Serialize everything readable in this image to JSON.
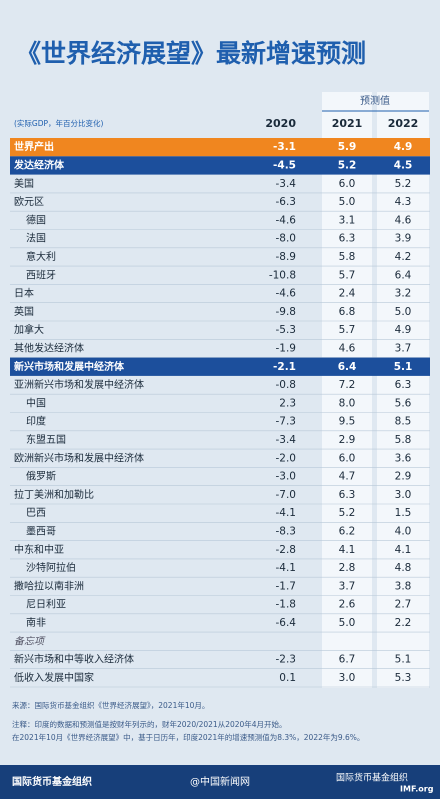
{
  "header": {
    "title": "《世界经济展望》最新增速预测",
    "forecast_label": "预测值"
  },
  "table": {
    "columns": [
      "(实际GDP，年百分比变化)",
      "2020",
      "2021",
      "2022"
    ],
    "rows": [
      [
        "世界产出",
        "-3.1",
        "5.9",
        "4.9"
      ],
      [
        "发达经济体",
        "-4.5",
        "5.2",
        "4.5"
      ],
      [
        "美国",
        "-3.4",
        "6.0",
        "5.2"
      ],
      [
        "欧元区",
        "-6.3",
        "5.0",
        "4.3"
      ],
      [
        "德国",
        "-4.6",
        "3.1",
        "4.6"
      ],
      [
        "法国",
        "-8.0",
        "6.3",
        "3.9"
      ],
      [
        "意大利",
        "-8.9",
        "5.8",
        "4.2"
      ],
      [
        "西班牙",
        "-10.8",
        "5.7",
        "6.4"
      ],
      [
        "日本",
        "-4.6",
        "2.4",
        "3.2"
      ],
      [
        "英国",
        "-9.8",
        "6.8",
        "5.0"
      ],
      [
        "加拿大",
        "-5.3",
        "5.7",
        "4.9"
      ],
      [
        "其他发达经济体",
        "-1.9",
        "4.6",
        "3.7"
      ],
      [
        "新兴市场和发展中经济体",
        "-2.1",
        "6.4",
        "5.1"
      ],
      [
        "亚洲新兴市场和发展中经济体",
        "-0.8",
        "7.2",
        "6.3"
      ],
      [
        "中国",
        "2.3",
        "8.0",
        "5.6"
      ],
      [
        "印度",
        "-7.3",
        "9.5",
        "8.5"
      ],
      [
        "东盟五国",
        "-3.4",
        "2.9",
        "5.8"
      ],
      [
        "欧洲新兴市场和发展中经济体",
        "-2.0",
        "6.0",
        "3.6"
      ],
      [
        "俄罗斯",
        "-3.0",
        "4.7",
        "2.9"
      ],
      [
        "拉丁美洲和加勒比",
        "-7.0",
        "6.3",
        "3.0"
      ],
      [
        "巴西",
        "-4.1",
        "5.2",
        "1.5"
      ],
      [
        "墨西哥",
        "-8.3",
        "6.2",
        "4.0"
      ],
      [
        "中东和中亚",
        "-2.8",
        "4.1",
        "4.1"
      ],
      [
        "沙特阿拉伯",
        "-4.1",
        "2.8",
        "4.8"
      ],
      [
        "撒哈拉以南非洲",
        "-1.7",
        "3.7",
        "3.8"
      ],
      [
        "尼日利亚",
        "-1.8",
        "2.6",
        "2.7"
      ],
      [
        "南非",
        "-6.4",
        "5.0",
        "2.2"
      ],
      [
        "备忘项"
      ],
      [
        "新兴市场和中等收入经济体",
        "-2.3",
        "6.7",
        "5.1"
      ],
      [
        "低收入发展中国家",
        "0.1",
        "3.0",
        "5.3"
      ]
    ]
  },
  "notes": [
    "来源：国际货币基金组织《世界经济展望》，2021年10月。",
    "注释：印度的数据和预测值是按财年列示的，财年2020/2021从2020年4月开始。",
    "在2021年10月《世界经济展望》中，基于日历年，印度2021年的增速预测值为8.3%，2022年为9.6%。"
  ],
  "footer": {
    "left": "国际货币基金组织",
    "center": "@中国新闻网",
    "right": "国际货币基金组织",
    "site": "IMF.org"
  }
}
